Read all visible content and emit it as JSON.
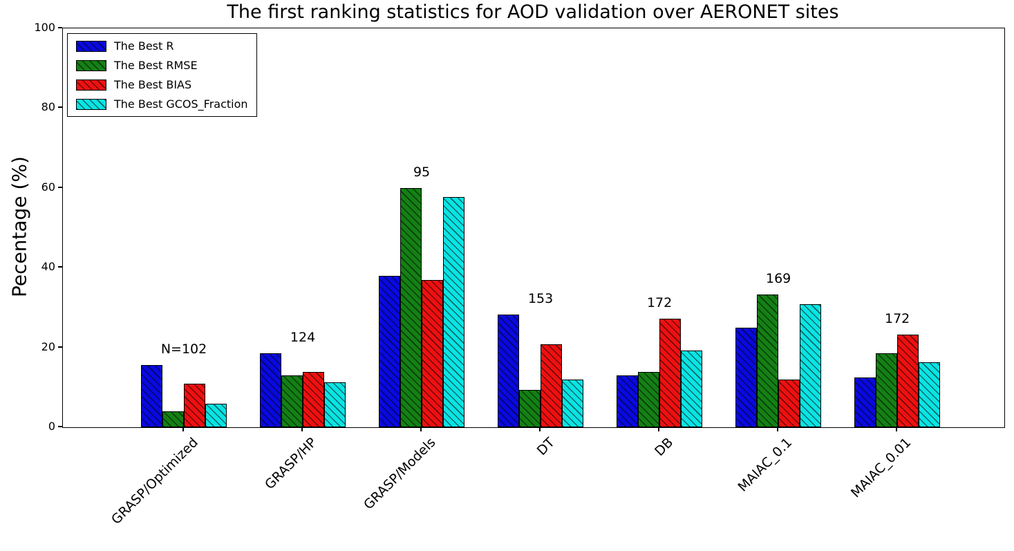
{
  "chart_data": {
    "type": "bar",
    "title": "The first ranking statistics for AOD validation over AERONET sites",
    "xlabel": "",
    "ylabel": "Pecentage (%)",
    "ylim": [
      0,
      100
    ],
    "yticks": [
      0,
      20,
      40,
      60,
      80,
      100
    ],
    "grid": false,
    "legend_position": "upper left",
    "hatch_pattern": "//",
    "categories": [
      "GRASP/Optimized",
      "GRASP/HP",
      "GRASP/Models",
      "DT",
      "DB",
      "MAIAC_0.1",
      "MAIAC_0.01"
    ],
    "series": [
      {
        "name": "The Best R",
        "color": "#0909e0",
        "values": [
          15.6,
          18.6,
          38.0,
          28.2,
          13.0,
          24.9,
          12.4
        ]
      },
      {
        "name": "The Best RMSE",
        "color": "#148014",
        "values": [
          4.0,
          13.0,
          60.0,
          9.4,
          13.9,
          33.3,
          18.5
        ]
      },
      {
        "name": "The Best BIAS",
        "color": "#ee1010",
        "values": [
          10.9,
          13.9,
          36.9,
          20.8,
          27.2,
          11.9,
          23.3
        ]
      },
      {
        "name": "The Best GCOS_Fraction",
        "color": "#0ae4e4",
        "values": [
          5.9,
          11.3,
          57.7,
          11.9,
          19.2,
          30.8,
          16.3
        ]
      }
    ],
    "annotations": [
      "N=102",
      "124",
      "95",
      "153",
      "172",
      "169",
      "172"
    ]
  }
}
